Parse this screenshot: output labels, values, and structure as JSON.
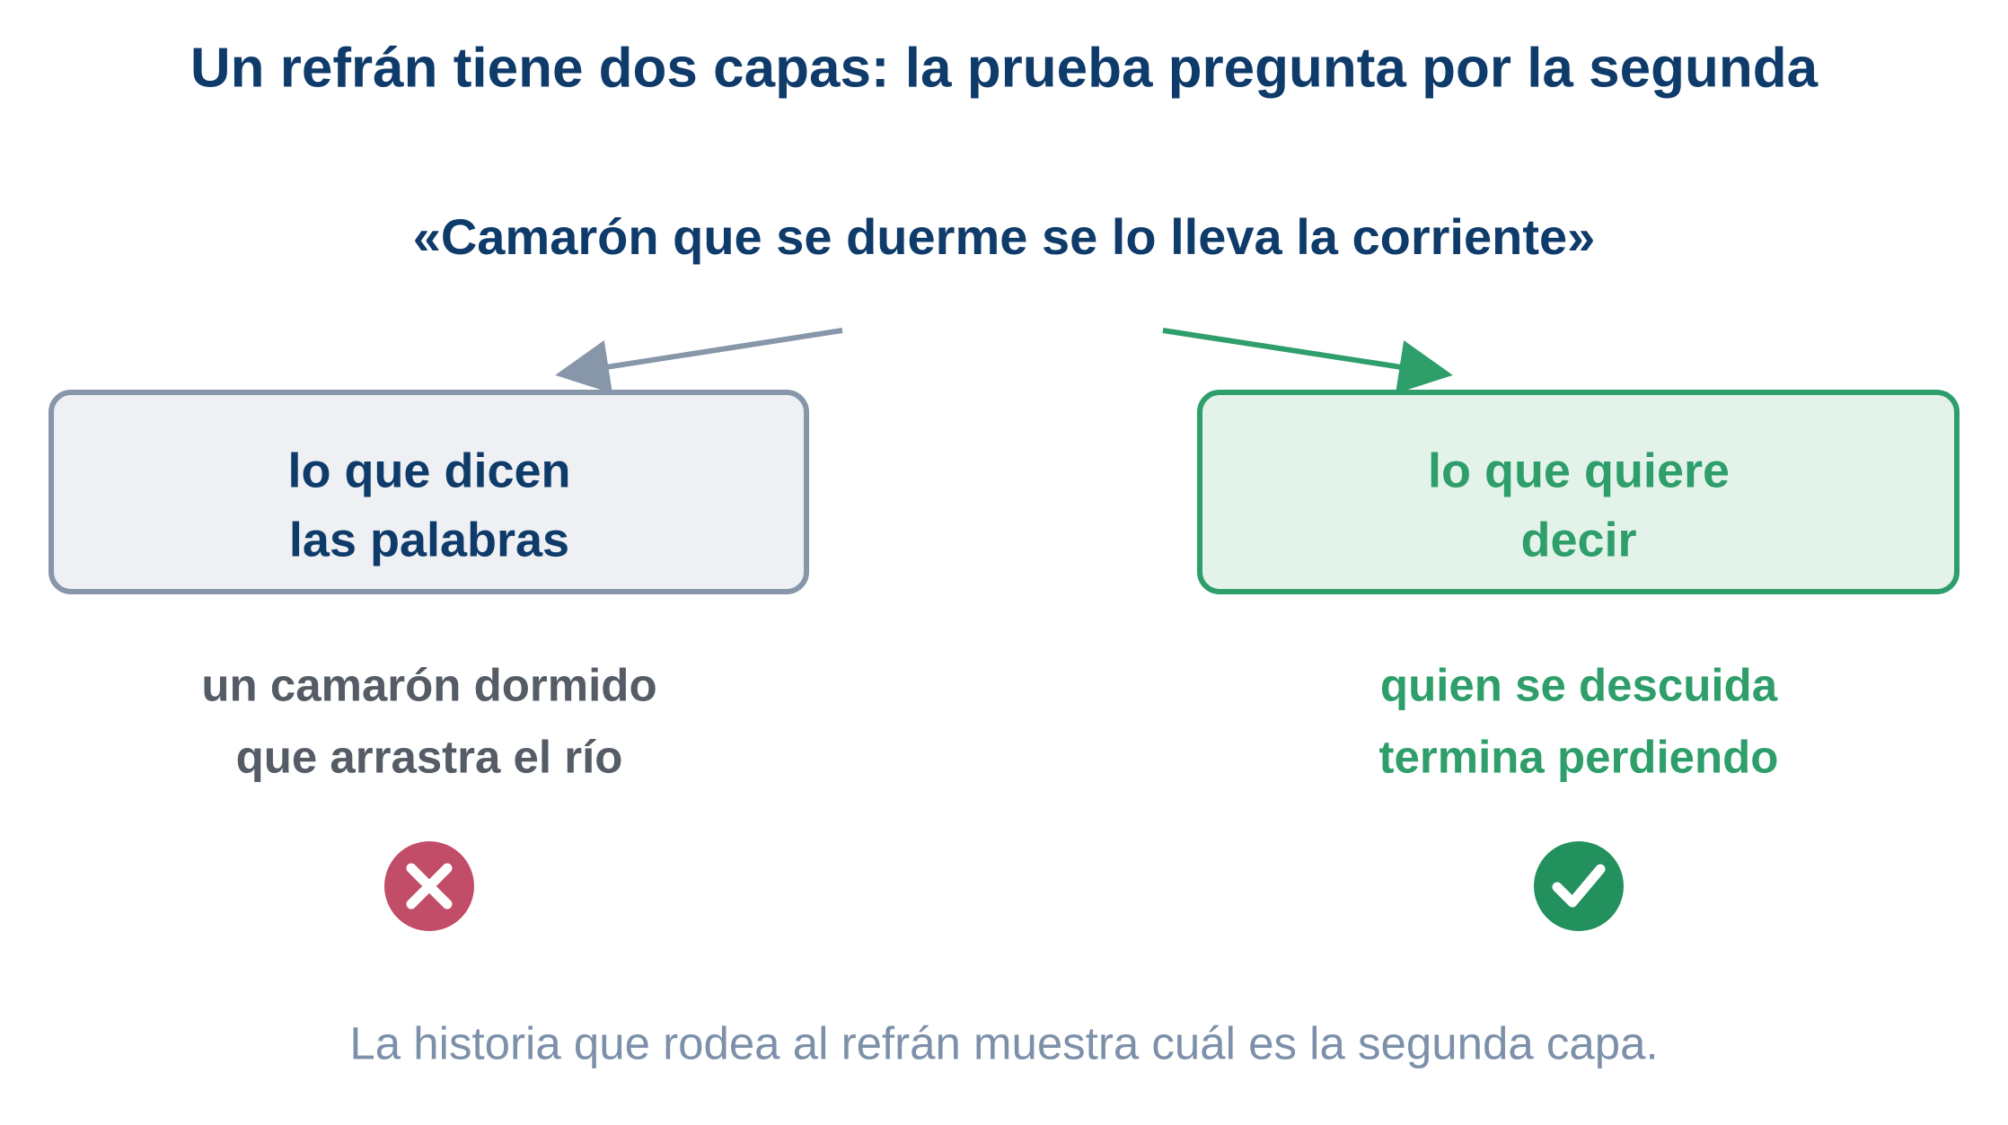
{
  "title": "Un refrán tiene dos capas: la prueba pregunta por la segunda",
  "quote": "«Camarón que se duerme se lo lleva la corriente»",
  "left": {
    "label": [
      "lo que dicen",
      "las palabras"
    ],
    "meaning": [
      "un camarón dormido",
      "que arrastra el río"
    ]
  },
  "right": {
    "label": [
      "lo que quiere",
      "decir"
    ],
    "meaning": [
      "quien se descuida",
      "termina perdiendo"
    ]
  },
  "footer": "La historia que rodea al refrán muestra cuál es la segunda capa."
}
